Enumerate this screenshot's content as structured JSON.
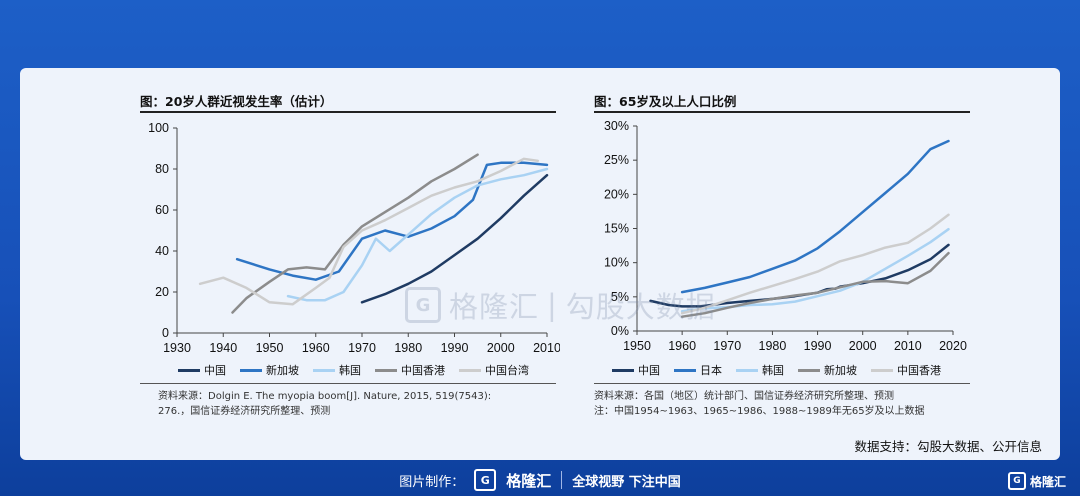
{
  "charts": {
    "left": {
      "title": "图：20岁人群近视发生率（估计）",
      "source_line1": "资料来源：Dolgin E. The myopia boom[J]. Nature, 2015, 519(7543):",
      "source_line2": "276.，国信证券经济研究所整理、预测"
    },
    "right": {
      "title": "图：65岁及以上人口比例",
      "source_line1": "资料来源：各国（地区）统计部门、国信证券经济研究所整理、预测",
      "source_line2": "注：中国1954~1963、1965~1986、1988~1989年无65岁及以上数据"
    }
  },
  "support_text": "数据支持：勾股大数据、公开信息",
  "watermark": {
    "brand": "格隆汇",
    "text": "勾股大数据"
  },
  "footer": {
    "made_by": "图片制作：",
    "brand": "格隆汇",
    "slogan": "全球视野 下注中国"
  },
  "corner_brand": "格隆汇",
  "chart_data": [
    {
      "type": "line",
      "title": "图：20岁人群近视发生率（估计）",
      "xlim": [
        1930,
        2010
      ],
      "ylim": [
        0,
        100
      ],
      "xticks": [
        1930,
        1940,
        1950,
        1960,
        1970,
        1980,
        1990,
        2000,
        2010
      ],
      "yticks": [
        0,
        20,
        40,
        60,
        80,
        100
      ],
      "grid": false,
      "legend_position": "bottom",
      "series": [
        {
          "name": "中国",
          "color": "#1f3b63",
          "width": 2.5,
          "points": [
            [
              1970,
              15
            ],
            [
              1975,
              19
            ],
            [
              1980,
              24
            ],
            [
              1985,
              30
            ],
            [
              1990,
              38
            ],
            [
              1995,
              46
            ],
            [
              2000,
              56
            ],
            [
              2005,
              67
            ],
            [
              2010,
              77
            ]
          ]
        },
        {
          "name": "新加坡",
          "color": "#2e75c4",
          "width": 2.5,
          "points": [
            [
              1943,
              36
            ],
            [
              1950,
              31
            ],
            [
              1955,
              28
            ],
            [
              1960,
              26
            ],
            [
              1965,
              30
            ],
            [
              1970,
              46
            ],
            [
              1975,
              50
            ],
            [
              1980,
              47
            ],
            [
              1985,
              51
            ],
            [
              1990,
              57
            ],
            [
              1994,
              65
            ],
            [
              1997,
              82
            ],
            [
              2000,
              83
            ],
            [
              2005,
              83
            ],
            [
              2010,
              82
            ]
          ]
        },
        {
          "name": "韩国",
          "color": "#a9d2f3",
          "width": 2.5,
          "points": [
            [
              1954,
              18
            ],
            [
              1958,
              16
            ],
            [
              1962,
              16
            ],
            [
              1966,
              20
            ],
            [
              1970,
              33
            ],
            [
              1973,
              46
            ],
            [
              1976,
              40
            ],
            [
              1980,
              48
            ],
            [
              1985,
              58
            ],
            [
              1990,
              66
            ],
            [
              1995,
              72
            ],
            [
              2000,
              75
            ],
            [
              2005,
              77
            ],
            [
              2010,
              80
            ]
          ]
        },
        {
          "name": "中国香港",
          "color": "#8c8c8c",
          "width": 2.5,
          "points": [
            [
              1942,
              10
            ],
            [
              1945,
              17
            ],
            [
              1950,
              25
            ],
            [
              1954,
              31
            ],
            [
              1958,
              32
            ],
            [
              1962,
              31
            ],
            [
              1966,
              43
            ],
            [
              1970,
              52
            ],
            [
              1975,
              59
            ],
            [
              1980,
              66
            ],
            [
              1985,
              74
            ],
            [
              1990,
              80
            ],
            [
              1995,
              87
            ]
          ]
        },
        {
          "name": "中国台湾",
          "color": "#cdcdcd",
          "width": 2.5,
          "points": [
            [
              1935,
              24
            ],
            [
              1940,
              27
            ],
            [
              1945,
              22
            ],
            [
              1950,
              15
            ],
            [
              1955,
              14
            ],
            [
              1960,
              22
            ],
            [
              1963,
              27
            ],
            [
              1966,
              42
            ],
            [
              1970,
              50
            ],
            [
              1975,
              55
            ],
            [
              1980,
              61
            ],
            [
              1985,
              67
            ],
            [
              1990,
              71
            ],
            [
              1995,
              74
            ],
            [
              2000,
              79
            ],
            [
              2005,
              85
            ],
            [
              2008,
              84
            ]
          ]
        }
      ]
    },
    {
      "type": "line",
      "title": "图：65岁及以上人口比例",
      "xlim": [
        1950,
        2020
      ],
      "ylim": [
        0,
        30
      ],
      "xticks": [
        1950,
        1960,
        1970,
        1980,
        1990,
        2000,
        2010,
        2020
      ],
      "yticks": [
        0,
        5,
        10,
        15,
        20,
        25,
        30
      ],
      "yunit": "%",
      "grid": false,
      "legend_position": "bottom",
      "series": [
        {
          "name": "中国",
          "color": "#1f3b63",
          "width": 2.5,
          "points": [
            [
              1953,
              4.4
            ],
            [
              1957,
              3.8
            ],
            [
              1960,
              3.6
            ],
            [
              1964,
              3.6
            ],
            [
              1970,
              4.1
            ],
            [
              1975,
              4.4
            ],
            [
              1980,
              4.7
            ],
            [
              1985,
              5.1
            ],
            [
              1990,
              5.6
            ],
            [
              1992,
              6.1
            ],
            [
              1994,
              6.2
            ],
            [
              1995,
              6.5
            ],
            [
              2000,
              7.0
            ],
            [
              2005,
              7.7
            ],
            [
              2010,
              8.9
            ],
            [
              2015,
              10.5
            ],
            [
              2019,
              12.6
            ]
          ]
        },
        {
          "name": "日本",
          "color": "#2e75c4",
          "width": 2.5,
          "points": [
            [
              1960,
              5.7
            ],
            [
              1965,
              6.3
            ],
            [
              1970,
              7.1
            ],
            [
              1975,
              7.9
            ],
            [
              1980,
              9.1
            ],
            [
              1985,
              10.3
            ],
            [
              1990,
              12.1
            ],
            [
              1995,
              14.6
            ],
            [
              2000,
              17.4
            ],
            [
              2005,
              20.2
            ],
            [
              2010,
              23.0
            ],
            [
              2015,
              26.6
            ],
            [
              2019,
              27.8
            ]
          ]
        },
        {
          "name": "韩国",
          "color": "#a9d2f3",
          "width": 2.5,
          "points": [
            [
              1960,
              2.9
            ],
            [
              1965,
              3.3
            ],
            [
              1970,
              3.5
            ],
            [
              1975,
              3.8
            ],
            [
              1980,
              3.9
            ],
            [
              1985,
              4.3
            ],
            [
              1990,
              5.1
            ],
            [
              1995,
              5.9
            ],
            [
              2000,
              7.2
            ],
            [
              2005,
              9.1
            ],
            [
              2010,
              11.0
            ],
            [
              2015,
              13.0
            ],
            [
              2019,
              14.9
            ]
          ]
        },
        {
          "name": "新加坡",
          "color": "#8c8c8c",
          "width": 2.5,
          "points": [
            [
              1960,
              2.1
            ],
            [
              1965,
              2.6
            ],
            [
              1970,
              3.4
            ],
            [
              1975,
              4.1
            ],
            [
              1980,
              4.7
            ],
            [
              1985,
              5.2
            ],
            [
              1990,
              5.6
            ],
            [
              1995,
              6.4
            ],
            [
              2000,
              7.2
            ],
            [
              2005,
              7.3
            ],
            [
              2010,
              7.0
            ],
            [
              2015,
              8.8
            ],
            [
              2019,
              11.4
            ]
          ]
        },
        {
          "name": "中国香港",
          "color": "#cdcdcd",
          "width": 2.5,
          "points": [
            [
              1960,
              2.6
            ],
            [
              1965,
              3.4
            ],
            [
              1970,
              4.5
            ],
            [
              1975,
              5.6
            ],
            [
              1980,
              6.6
            ],
            [
              1985,
              7.6
            ],
            [
              1990,
              8.7
            ],
            [
              1995,
              10.2
            ],
            [
              2000,
              11.1
            ],
            [
              2005,
              12.2
            ],
            [
              2010,
              12.9
            ],
            [
              2015,
              15.0
            ],
            [
              2019,
              17.0
            ]
          ]
        }
      ]
    }
  ]
}
